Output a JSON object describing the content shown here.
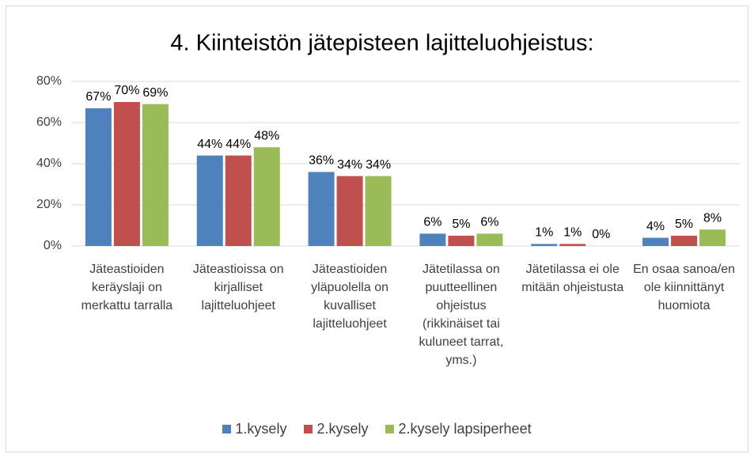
{
  "chart_data": {
    "type": "bar",
    "title": "4. Kiinteistön jätepisteen lajitteluohjeistus:",
    "categories": [
      "Jäteastioiden keräyslaji on merkattu tarralla",
      "Jäteastioissa on kirjalliset lajitteluohjeet",
      "Jäteastioiden yläpuolella on kuvalliset lajitteluohjeet",
      "Jätetilassa on puutteellinen ohjeistus (rikkinäiset tai kuluneet tarrat, yms.)",
      "Jätetilassa ei ole mitään ohjeistusta",
      "En osaa sanoa/en ole kiinnittänyt huomiota"
    ],
    "series": [
      {
        "name": "1.kysely",
        "color": "#4f81bd",
        "values": [
          67,
          44,
          36,
          6,
          1,
          4
        ],
        "value_labels": [
          "67%",
          "44%",
          "36%",
          "6%",
          "1%",
          "4%"
        ]
      },
      {
        "name": "2.kysely",
        "color": "#c0504d",
        "values": [
          70,
          44,
          34,
          5,
          1,
          5
        ],
        "value_labels": [
          "70%",
          "44%",
          "34%",
          "5%",
          "1%",
          "5%"
        ]
      },
      {
        "name": "2.kysely lapsiperheet",
        "color": "#9bbb59",
        "values": [
          69,
          48,
          34,
          6,
          0,
          8
        ],
        "value_labels": [
          "69%",
          "48%",
          "34%",
          "6%",
          "0%",
          "8%"
        ]
      }
    ],
    "ylim": [
      0,
      80
    ],
    "yticks": [
      {
        "value": 0,
        "label": "0%"
      },
      {
        "value": 20,
        "label": "20%"
      },
      {
        "value": 40,
        "label": "40%"
      },
      {
        "value": 60,
        "label": "60%"
      },
      {
        "value": 80,
        "label": "80%"
      }
    ],
    "grid": true,
    "legend": "bottom"
  }
}
